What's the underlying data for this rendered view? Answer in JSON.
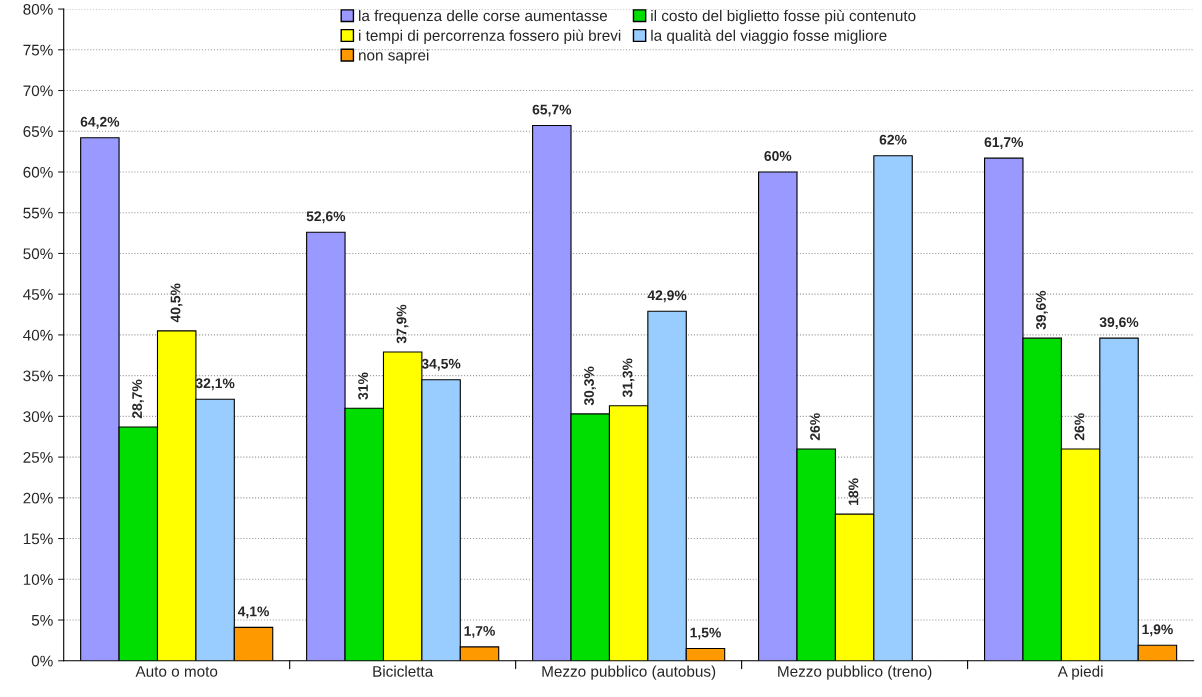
{
  "chart_data": {
    "type": "bar",
    "categories": [
      "Auto o moto",
      "Bicicletta",
      "Mezzo pubblico (autobus)",
      "Mezzo pubblico (treno)",
      "A piedi"
    ],
    "series": [
      {
        "name": "la frequenza delle corse aumentasse",
        "color": "#9999ff",
        "values": [
          64.2,
          52.6,
          65.7,
          60,
          61.7
        ],
        "value_labels": [
          "64,2%",
          "52,6%",
          "65,7%",
          "60%",
          "61,7%"
        ]
      },
      {
        "name": "il costo del biglietto fosse più contenuto",
        "color": "#00dd00",
        "values": [
          28.7,
          31,
          30.3,
          26,
          39.6
        ],
        "value_labels": [
          "28,7%",
          "31%",
          "30,3%",
          "26%",
          "39,6%"
        ]
      },
      {
        "name": "i tempi di percorrenza fossero più brevi",
        "color": "#ffff00",
        "values": [
          40.5,
          37.9,
          31.3,
          18,
          26
        ],
        "value_labels": [
          "40,5%",
          "37,9%",
          "31,3%",
          "18%",
          "26%"
        ]
      },
      {
        "name": "la qualità del viaggio fosse migliore",
        "color": "#99ccff",
        "values": [
          32.1,
          34.5,
          42.9,
          62,
          39.6
        ],
        "value_labels": [
          "32,1%",
          "34,5%",
          "42,9%",
          "62%",
          "39,6%"
        ]
      },
      {
        "name": "non saprei",
        "color": "#ff9900",
        "values": [
          4.1,
          1.7,
          1.5,
          null,
          1.9
        ],
        "value_labels": [
          "4,1%",
          "1,7%",
          "1,5%",
          null,
          "1,9%"
        ]
      }
    ],
    "ylim": [
      0,
      80
    ],
    "yticks": [
      {
        "value": 0,
        "label": "0%"
      },
      {
        "value": 5,
        "label": "5%"
      },
      {
        "value": 10,
        "label": "10%"
      },
      {
        "value": 15,
        "label": "15%"
      },
      {
        "value": 20,
        "label": "20%"
      },
      {
        "value": 25,
        "label": "25%"
      },
      {
        "value": 30,
        "label": "30%"
      },
      {
        "value": 35,
        "label": "35%"
      },
      {
        "value": 40,
        "label": "40%"
      },
      {
        "value": 45,
        "label": "45%"
      },
      {
        "value": 50,
        "label": "50%"
      },
      {
        "value": 55,
        "label": "55%"
      },
      {
        "value": 60,
        "label": "60%"
      },
      {
        "value": 65,
        "label": "65%"
      },
      {
        "value": 70,
        "label": "70%"
      },
      {
        "value": 75,
        "label": "75%"
      },
      {
        "value": 80,
        "label": "80%"
      }
    ],
    "grid": "y",
    "legend": "top"
  }
}
